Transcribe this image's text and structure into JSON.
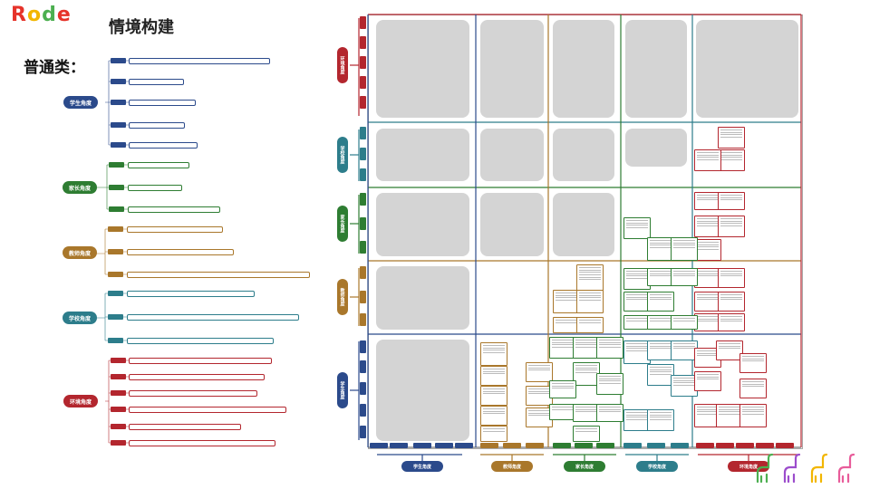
{
  "header": {
    "logo_text": "Rode",
    "logo_letters": [
      "R",
      "o",
      "d",
      "e"
    ],
    "logo_colors": [
      "#e6332a",
      "#f2b600",
      "#4caf50",
      "#e6332a"
    ],
    "title": "情境构建",
    "section": "普通类："
  },
  "colors": {
    "student": "#2b4a8b",
    "parent": "#2e7d32",
    "teacher": "#a9772b",
    "school": "#2d7d8b",
    "environment": "#b3262e"
  },
  "left_map": {
    "categories": [
      {
        "key": "student",
        "label": "学生角度",
        "leaf_count": 5
      },
      {
        "key": "parent",
        "label": "家长角度",
        "leaf_count": 3
      },
      {
        "key": "teacher",
        "label": "教师角度",
        "leaf_count": 3
      },
      {
        "key": "school",
        "label": "学校角度",
        "leaf_count": 3
      },
      {
        "key": "environment",
        "label": "环境角度",
        "leaf_count": 6
      }
    ]
  },
  "grid": {
    "rows": [
      {
        "key": "environment",
        "label": "环境角度"
      },
      {
        "key": "school",
        "label": "学校角度"
      },
      {
        "key": "parent",
        "label": "家长角度"
      },
      {
        "key": "teacher",
        "label": "教师角度"
      },
      {
        "key": "student",
        "label": "学生角度"
      }
    ],
    "columns": [
      {
        "key": "student",
        "label": "学生角度"
      },
      {
        "key": "teacher",
        "label": "教师角度"
      },
      {
        "key": "parent",
        "label": "家长角度"
      },
      {
        "key": "school",
        "label": "学校角度"
      },
      {
        "key": "environment",
        "label": "环境角度"
      }
    ]
  }
}
